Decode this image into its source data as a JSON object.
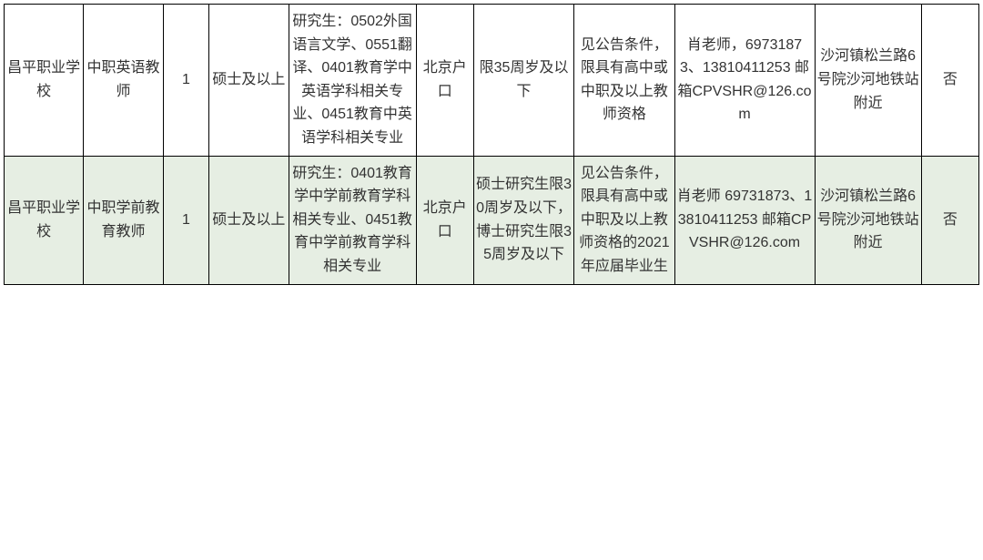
{
  "table": {
    "background_color": "#ffffff",
    "alt_row_color": "#e6eee3",
    "border_color": "#000000",
    "text_color": "#333333",
    "font_size": 16,
    "columns": [
      {
        "key": "school",
        "width_pct": 7.6
      },
      {
        "key": "position",
        "width_pct": 7.6
      },
      {
        "key": "count",
        "width_pct": 4.4
      },
      {
        "key": "degree",
        "width_pct": 7.6
      },
      {
        "key": "major",
        "width_pct": 12.2
      },
      {
        "key": "hukou",
        "width_pct": 5.5
      },
      {
        "key": "age",
        "width_pct": 9.6
      },
      {
        "key": "other",
        "width_pct": 9.6
      },
      {
        "key": "contact",
        "width_pct": 13.4
      },
      {
        "key": "address",
        "width_pct": 10.2
      },
      {
        "key": "flag",
        "width_pct": 5.5
      }
    ],
    "rows": [
      {
        "alt": false,
        "school": "昌平职业学校",
        "position": "中职英语教师",
        "count": "1",
        "degree": "硕士及以上",
        "major": "研究生：0502外国语言文学、0551翻译、0401教育学中英语学科相关专业、0451教育中英语学科相关专业",
        "hukou": "北京户口",
        "age": "限35周岁及以下",
        "other": "见公告条件，限具有高中或中职及以上教师资格",
        "contact": "肖老师，69731873、13810411253 邮箱CPVSHR@126.com",
        "address": "沙河镇松兰路6号院沙河地铁站附近",
        "flag": "否"
      },
      {
        "alt": true,
        "school": "昌平职业学校",
        "position": "中职学前教育教师",
        "count": "1",
        "degree": "硕士及以上",
        "major": "研究生：0401教育学中学前教育学科相关专业、0451教育中学前教育学科相关专业",
        "hukou": "北京户口",
        "age": "硕士研究生限30周岁及以下，博士研究生限35周岁及以下",
        "other": "见公告条件，限具有高中或中职及以上教师资格的2021年应届毕业生",
        "contact": "肖老师 69731873、13810411253 邮箱CPVSHR@126.com",
        "address": "沙河镇松兰路6号院沙河地铁站附近",
        "flag": "否"
      }
    ]
  }
}
